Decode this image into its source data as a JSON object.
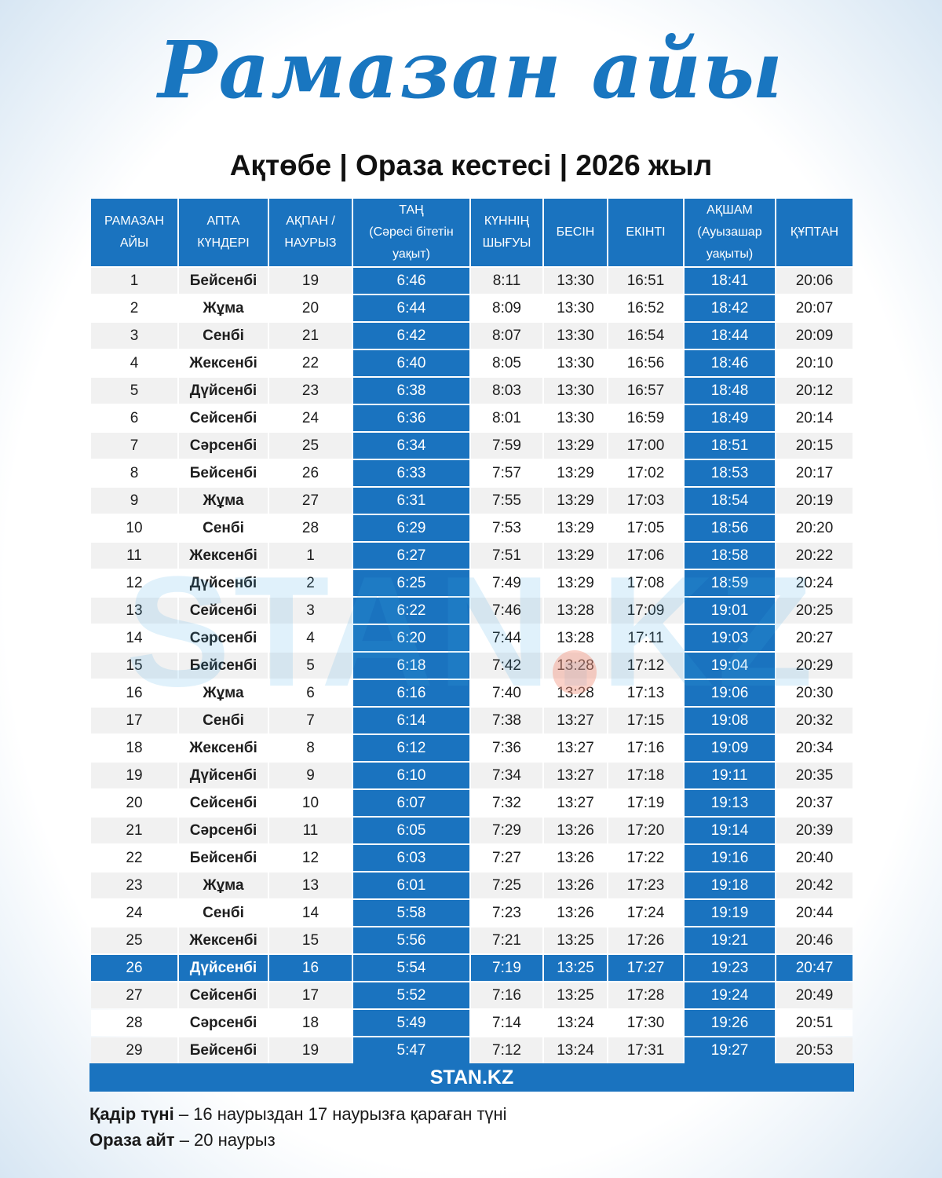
{
  "title": "Рамазан айы",
  "subtitle": "Ақтөбе | Ораза кестесі | 2026 жыл",
  "watermark": "STAN.KZ",
  "table": {
    "headers": [
      [
        "РАМАЗАН",
        "АЙЫ"
      ],
      [
        "АПТА",
        "КҮНДЕРІ"
      ],
      [
        "АҚПАН /",
        "НАУРЫЗ"
      ],
      [
        "ТАҢ",
        "(Сәресі бітетін",
        "уақыт)"
      ],
      [
        "КҮННІҢ",
        "ШЫҒУЫ"
      ],
      [
        "БЕСІН"
      ],
      [
        "ЕКІНТІ"
      ],
      [
        "АҚШАМ",
        "(Ауызашар",
        "уақыты)"
      ],
      [
        "ҚҰПТАН"
      ]
    ],
    "rows": [
      [
        "1",
        "Бейсенбі",
        "19",
        "6:46",
        "8:11",
        "13:30",
        "16:51",
        "18:41",
        "20:06"
      ],
      [
        "2",
        "Жұма",
        "20",
        "6:44",
        "8:09",
        "13:30",
        "16:52",
        "18:42",
        "20:07"
      ],
      [
        "3",
        "Сенбі",
        "21",
        "6:42",
        "8:07",
        "13:30",
        "16:54",
        "18:44",
        "20:09"
      ],
      [
        "4",
        "Жексенбі",
        "22",
        "6:40",
        "8:05",
        "13:30",
        "16:56",
        "18:46",
        "20:10"
      ],
      [
        "5",
        "Дүйсенбі",
        "23",
        "6:38",
        "8:03",
        "13:30",
        "16:57",
        "18:48",
        "20:12"
      ],
      [
        "6",
        "Сейсенбі",
        "24",
        "6:36",
        "8:01",
        "13:30",
        "16:59",
        "18:49",
        "20:14"
      ],
      [
        "7",
        "Сәрсенбі",
        "25",
        "6:34",
        "7:59",
        "13:29",
        "17:00",
        "18:51",
        "20:15"
      ],
      [
        "8",
        "Бейсенбі",
        "26",
        "6:33",
        "7:57",
        "13:29",
        "17:02",
        "18:53",
        "20:17"
      ],
      [
        "9",
        "Жұма",
        "27",
        "6:31",
        "7:55",
        "13:29",
        "17:03",
        "18:54",
        "20:19"
      ],
      [
        "10",
        "Сенбі",
        "28",
        "6:29",
        "7:53",
        "13:29",
        "17:05",
        "18:56",
        "20:20"
      ],
      [
        "11",
        "Жексенбі",
        "1",
        "6:27",
        "7:51",
        "13:29",
        "17:06",
        "18:58",
        "20:22"
      ],
      [
        "12",
        "Дүйсенбі",
        "2",
        "6:25",
        "7:49",
        "13:29",
        "17:08",
        "18:59",
        "20:24"
      ],
      [
        "13",
        "Сейсенбі",
        "3",
        "6:22",
        "7:46",
        "13:28",
        "17:09",
        "19:01",
        "20:25"
      ],
      [
        "14",
        "Сәрсенбі",
        "4",
        "6:20",
        "7:44",
        "13:28",
        "17:11",
        "19:03",
        "20:27"
      ],
      [
        "15",
        "Бейсенбі",
        "5",
        "6:18",
        "7:42",
        "13:28",
        "17:12",
        "19:04",
        "20:29"
      ],
      [
        "16",
        "Жұма",
        "6",
        "6:16",
        "7:40",
        "13:28",
        "17:13",
        "19:06",
        "20:30"
      ],
      [
        "17",
        "Сенбі",
        "7",
        "6:14",
        "7:38",
        "13:27",
        "17:15",
        "19:08",
        "20:32"
      ],
      [
        "18",
        "Жексенбі",
        "8",
        "6:12",
        "7:36",
        "13:27",
        "17:16",
        "19:09",
        "20:34"
      ],
      [
        "19",
        "Дүйсенбі",
        "9",
        "6:10",
        "7:34",
        "13:27",
        "17:18",
        "19:11",
        "20:35"
      ],
      [
        "20",
        "Сейсенбі",
        "10",
        "6:07",
        "7:32",
        "13:27",
        "17:19",
        "19:13",
        "20:37"
      ],
      [
        "21",
        "Сәрсенбі",
        "11",
        "6:05",
        "7:29",
        "13:26",
        "17:20",
        "19:14",
        "20:39"
      ],
      [
        "22",
        "Бейсенбі",
        "12",
        "6:03",
        "7:27",
        "13:26",
        "17:22",
        "19:16",
        "20:40"
      ],
      [
        "23",
        "Жұма",
        "13",
        "6:01",
        "7:25",
        "13:26",
        "17:23",
        "19:18",
        "20:42"
      ],
      [
        "24",
        "Сенбі",
        "14",
        "5:58",
        "7:23",
        "13:26",
        "17:24",
        "19:19",
        "20:44"
      ],
      [
        "25",
        "Жексенбі",
        "15",
        "5:56",
        "7:21",
        "13:25",
        "17:26",
        "19:21",
        "20:46"
      ],
      [
        "26",
        "Дүйсенбі",
        "16",
        "5:54",
        "7:19",
        "13:25",
        "17:27",
        "19:23",
        "20:47"
      ],
      [
        "27",
        "Сейсенбі",
        "17",
        "5:52",
        "7:16",
        "13:25",
        "17:28",
        "19:24",
        "20:49"
      ],
      [
        "28",
        "Сәрсенбі",
        "18",
        "5:49",
        "7:14",
        "13:24",
        "17:30",
        "19:26",
        "20:51"
      ],
      [
        "29",
        "Бейсенбі",
        "19",
        "5:47",
        "7:12",
        "13:24",
        "17:31",
        "19:27",
        "20:53"
      ]
    ],
    "highlighted_row_day": "26"
  },
  "footer_logo": "STAN.KZ",
  "notes": [
    {
      "label": "Қадір түні",
      "text": " – 16 наурыздан 17 наурызға қараған түні"
    },
    {
      "label": "Ораза айт",
      "text": " – 20 наурыз"
    }
  ],
  "colors": {
    "accent": "#1a73bf",
    "title": "#1976c0"
  }
}
